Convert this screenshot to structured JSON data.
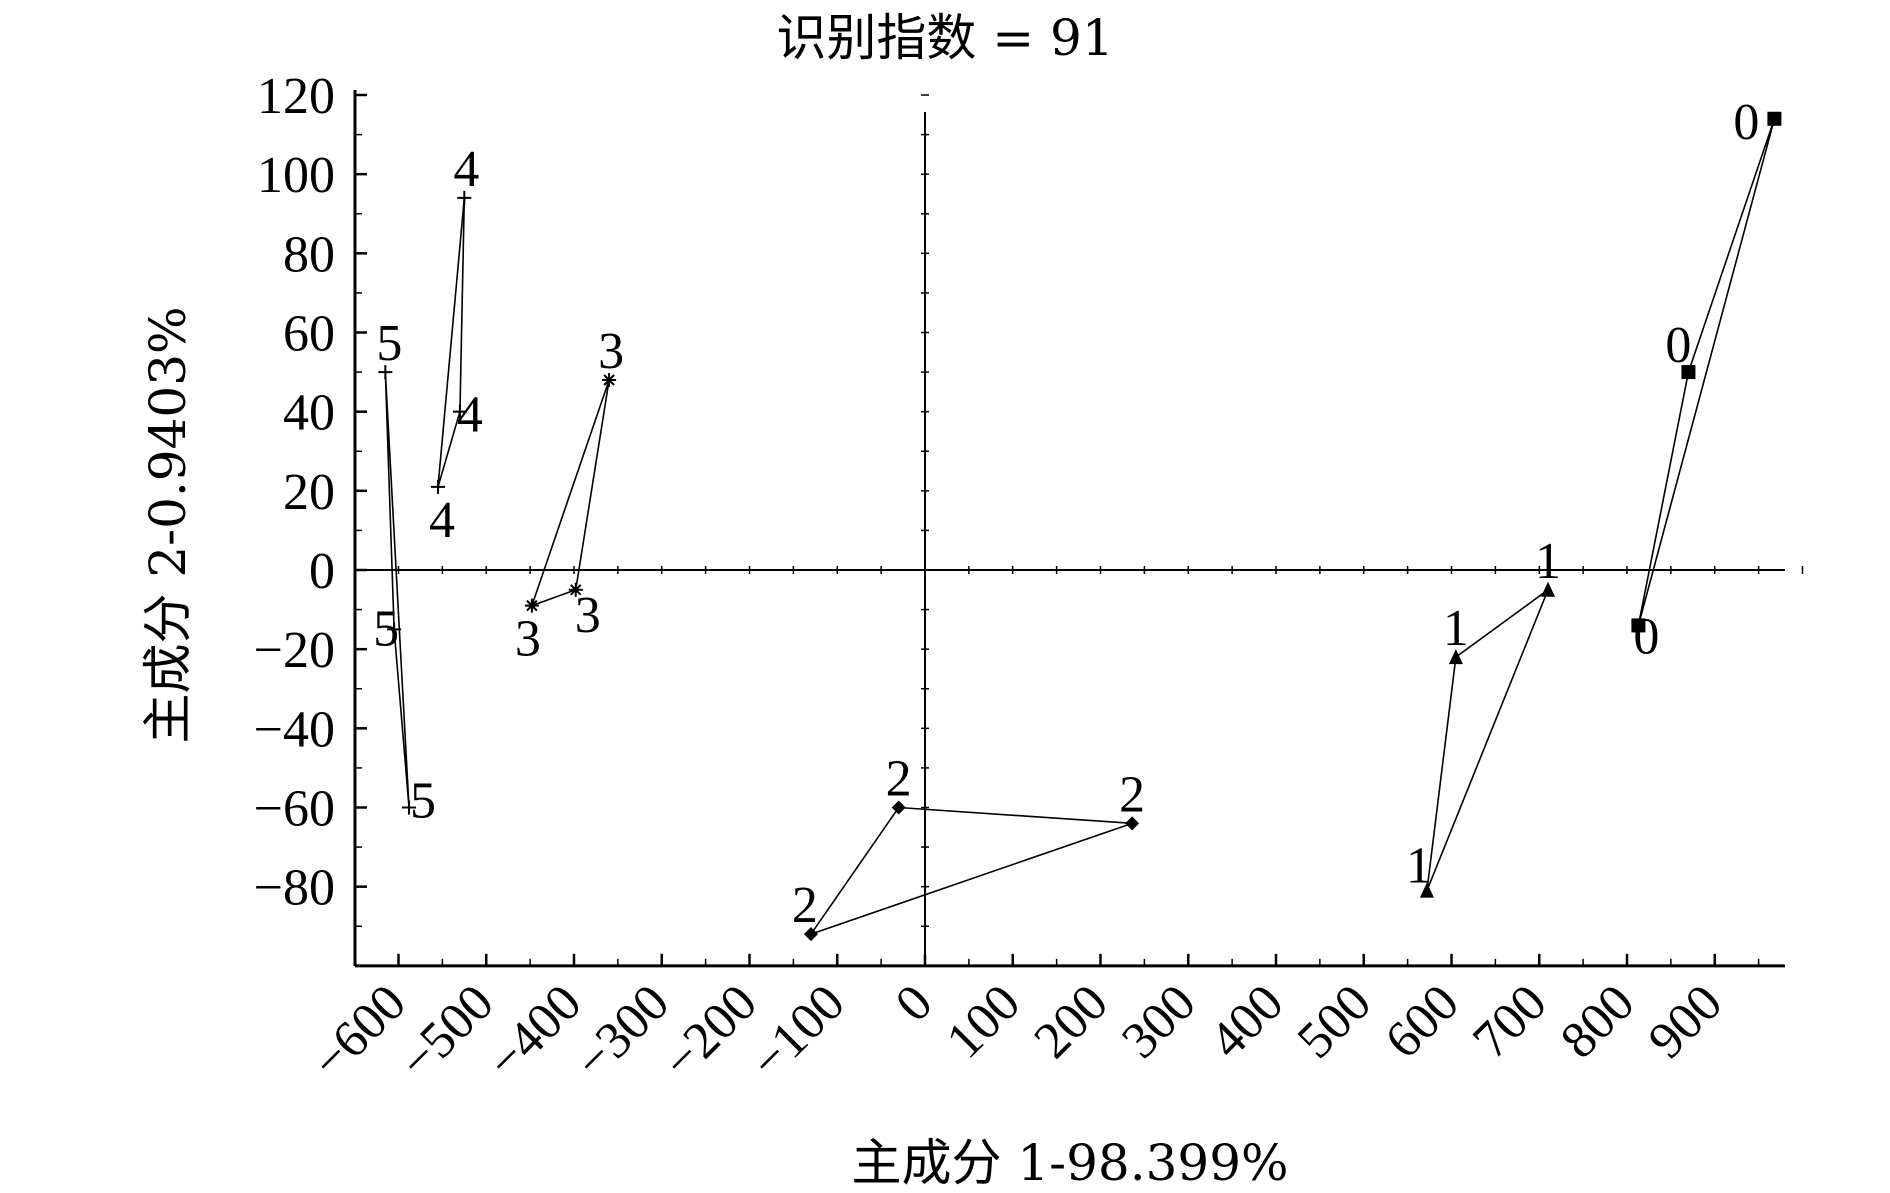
{
  "chart_data": {
    "type": "scatter",
    "title": "识别指数 = 91",
    "xlabel": "主成分 1-98.399%",
    "ylabel": "主成分 2-0.9403%",
    "xlim": [
      -650,
      1000
    ],
    "ylim": [
      -100,
      120
    ],
    "x_ticks": [
      -600,
      -500,
      -400,
      -300,
      -200,
      -100,
      0,
      100,
      200,
      300,
      400,
      500,
      600,
      700,
      800,
      900
    ],
    "x_tick_labels": [
      "−600",
      "−500",
      "−400",
      "−300",
      "−200",
      "−100",
      "0",
      "100",
      "200",
      "300",
      "400",
      "500",
      "600",
      "700",
      "800",
      "900"
    ],
    "y_ticks": [
      -80,
      -60,
      -40,
      -20,
      0,
      20,
      40,
      60,
      80,
      100,
      120
    ],
    "y_tick_labels": [
      "−80",
      "−60",
      "−40",
      "−20",
      "0",
      "20",
      "40",
      "60",
      "80",
      "100",
      "120"
    ],
    "grid": false,
    "legend": "none",
    "series": [
      {
        "label": "0",
        "marker": "square",
        "points": [
          {
            "x": 968,
            "y": 114
          },
          {
            "x": 870,
            "y": 50
          },
          {
            "x": 813,
            "y": -14
          }
        ]
      },
      {
        "label": "1",
        "marker": "triangle",
        "points": [
          {
            "x": 710,
            "y": -5
          },
          {
            "x": 605,
            "y": -22
          },
          {
            "x": 572,
            "y": -81
          }
        ]
      },
      {
        "label": "2",
        "marker": "diamond",
        "points": [
          {
            "x": -30,
            "y": -60
          },
          {
            "x": 236,
            "y": -64
          },
          {
            "x": -130,
            "y": -92
          }
        ]
      },
      {
        "label": "3",
        "marker": "asterisk",
        "points": [
          {
            "x": -360,
            "y": 48
          },
          {
            "x": -398,
            "y": -5
          },
          {
            "x": -448,
            "y": -9
          }
        ]
      },
      {
        "label": "4",
        "marker": "plus",
        "points": [
          {
            "x": -525,
            "y": 94
          },
          {
            "x": -530,
            "y": 40
          },
          {
            "x": -555,
            "y": 21
          }
        ]
      },
      {
        "label": "5",
        "marker": "plus",
        "points": [
          {
            "x": -615,
            "y": 50
          },
          {
            "x": -605,
            "y": -15
          },
          {
            "x": -588,
            "y": -60
          }
        ]
      }
    ]
  }
}
